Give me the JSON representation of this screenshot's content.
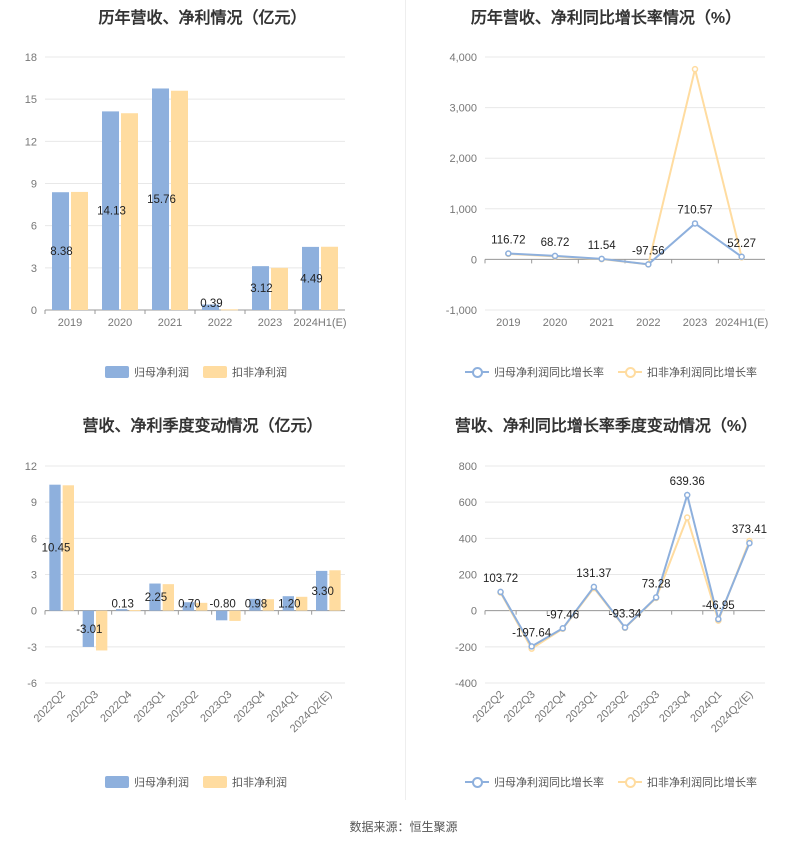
{
  "footer": "数据来源：恒生聚源",
  "colors": {
    "blue": "#8eb0dd",
    "orange": "#ffdca0",
    "grid": "#e8e8e8",
    "axis": "#999999"
  },
  "charts": [
    {
      "title": "历年营收、净利情况（亿元）",
      "legend": [
        "归母净利润",
        "扣非净利润"
      ],
      "chart_data": {
        "type": "bar",
        "categories": [
          "2019",
          "2020",
          "2021",
          "2022",
          "2023",
          "2024H1(E)"
        ],
        "series": [
          {
            "name": "归母净利润",
            "values": [
              8.38,
              14.13,
              15.76,
              0.39,
              3.12,
              4.49
            ],
            "labels": [
              "8.38",
              "14.13",
              "15.76",
              "0.39",
              "3.12",
              "4.49"
            ]
          },
          {
            "name": "扣非净利润",
            "values": [
              8.4,
              14.0,
              15.6,
              0.05,
              3.0,
              4.5
            ]
          }
        ],
        "yticks": [
          "0",
          "3",
          "6",
          "9",
          "12",
          "15",
          "18"
        ],
        "ylim": [
          0,
          18
        ]
      }
    },
    {
      "title": "历年营收、净利同比增长率情况（%）",
      "legend": [
        "归母净利润同比增长率",
        "扣非净利润同比增长率"
      ],
      "chart_data": {
        "type": "line",
        "categories": [
          "2019",
          "2020",
          "2021",
          "2022",
          "2023",
          "2024H1(E)"
        ],
        "series": [
          {
            "name": "归母净利润同比增长率",
            "values": [
              116.72,
              68.72,
              11.54,
              -97.56,
              710.57,
              52.27
            ],
            "labels": [
              "116.72",
              "68.72",
              "11.54",
              "-97.56",
              "710.57",
              "52.27"
            ]
          },
          {
            "name": "扣非净利润同比增长率",
            "values": [
              110,
              60,
              5,
              -99,
              3760,
              40
            ]
          }
        ],
        "yticks": [
          "-1,000",
          "0",
          "1,000",
          "2,000",
          "3,000",
          "4,000"
        ],
        "ylim": [
          -1000,
          4000
        ]
      }
    },
    {
      "title": "营收、净利季度变动情况（亿元）",
      "legend": [
        "归母净利润",
        "扣非净利润"
      ],
      "chart_data": {
        "type": "bar",
        "categories": [
          "2022Q2",
          "2022Q3",
          "2022Q4",
          "2023Q1",
          "2023Q2",
          "2023Q3",
          "2023Q4",
          "2024Q1",
          "2024Q2(E)"
        ],
        "series": [
          {
            "name": "归母净利润",
            "values": [
              10.45,
              -3.01,
              0.13,
              2.25,
              0.7,
              -0.8,
              0.98,
              1.2,
              3.3
            ],
            "labels": [
              "10.45",
              "-3.01",
              "0.13",
              "2.25",
              "0.70",
              "-0.80",
              "0.98",
              "1.20",
              "3.30"
            ]
          },
          {
            "name": "扣非净利润",
            "values": [
              10.4,
              -3.3,
              0.05,
              2.2,
              0.65,
              -0.85,
              0.95,
              1.15,
              3.35
            ]
          }
        ],
        "yticks": [
          "-6",
          "-3",
          "0",
          "3",
          "6",
          "9",
          "12"
        ],
        "ylim": [
          -6,
          12
        ]
      }
    },
    {
      "title": "营收、净利同比增长率季度变动情况（%）",
      "legend": [
        "归母净利润同比增长率",
        "扣非净利润同比增长率"
      ],
      "chart_data": {
        "type": "line",
        "categories": [
          "2022Q2",
          "2022Q3",
          "2022Q4",
          "2023Q1",
          "2023Q2",
          "2023Q3",
          "2023Q4",
          "2024Q1",
          "2024Q2(E)"
        ],
        "series": [
          {
            "name": "归母净利润同比增长率",
            "values": [
              103.72,
              -197.64,
              -97.46,
              131.37,
              -93.34,
              73.28,
              639.36,
              -46.95,
              373.41
            ],
            "labels": [
              "103.72",
              "-197.64",
              "-97.46",
              "131.37",
              "-93.34",
              "73.28",
              "639.36",
              "-46.95",
              "373.41"
            ]
          },
          {
            "name": "扣非净利润同比增长率",
            "values": [
              100,
              -210,
              -100,
              125,
              -95,
              70,
              515,
              -55,
              385
            ]
          }
        ],
        "yticks": [
          "-400",
          "-200",
          "0",
          "200",
          "400",
          "600",
          "800"
        ],
        "ylim": [
          -400,
          800
        ]
      }
    }
  ]
}
